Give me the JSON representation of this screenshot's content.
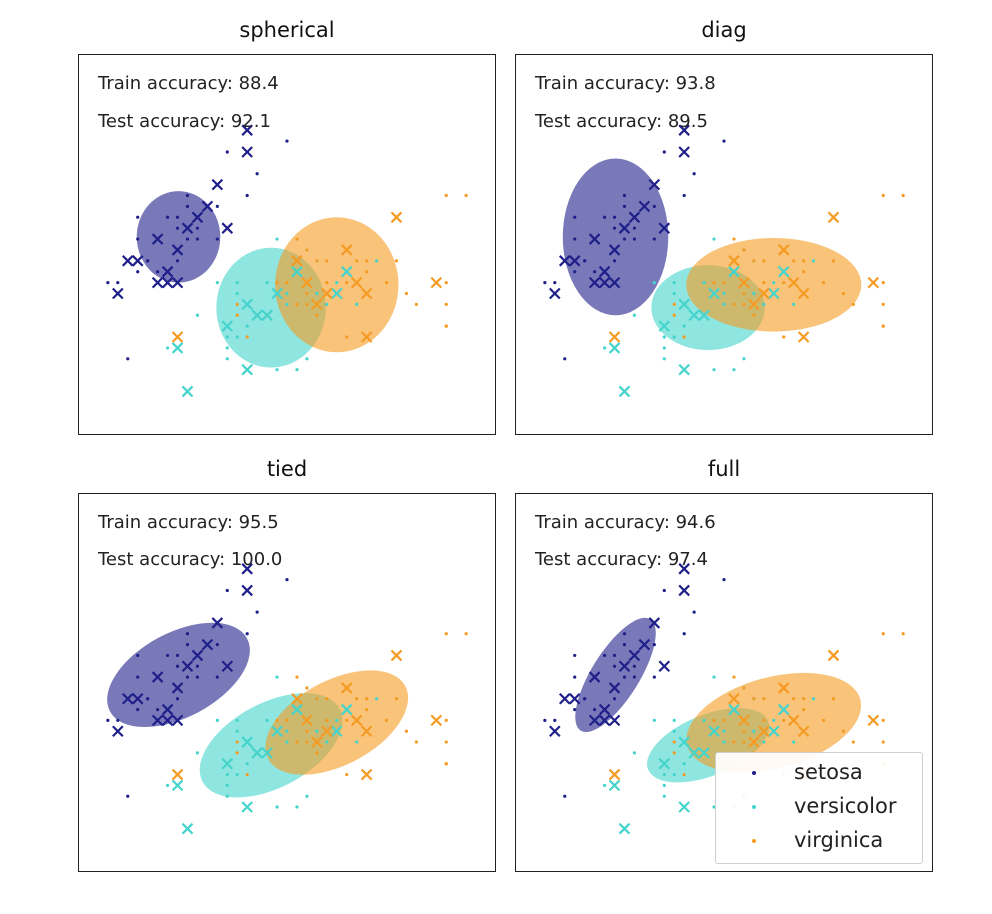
{
  "figure": {
    "colors": {
      "setosa": "#1f1f8a",
      "versicolor": "#44d4cc",
      "virginica": "#f59b22"
    }
  },
  "legend": {
    "placement": "bottom-right of last panel",
    "entries": [
      {
        "label": "setosa",
        "color": "#1f1f8a"
      },
      {
        "label": "versicolor",
        "color": "#44d4cc"
      },
      {
        "label": "virginica",
        "color": "#f59b22"
      }
    ]
  },
  "chart_data": [
    {
      "type": "scatter",
      "title": "spherical",
      "train_label": "Train accuracy: 88.4",
      "test_label": "Test accuracy: 92.1",
      "train_accuracy": 88.4,
      "test_accuracy": 92.1,
      "ellipses": [
        {
          "class": "setosa",
          "cx": 5.01,
          "cy": 3.42,
          "rx": 0.42,
          "ry": 0.42,
          "angle": 0
        },
        {
          "class": "versicolor",
          "cx": 5.94,
          "cy": 2.77,
          "rx": 0.55,
          "ry": 0.55,
          "angle": 0
        },
        {
          "class": "virginica",
          "cx": 6.6,
          "cy": 2.98,
          "rx": 0.62,
          "ry": 0.62,
          "angle": 0
        }
      ]
    },
    {
      "type": "scatter",
      "title": "diag",
      "train_label": "Train accuracy: 93.8",
      "test_label": "Test accuracy: 89.5",
      "train_accuracy": 93.8,
      "test_accuracy": 89.5,
      "ellipses": [
        {
          "class": "setosa",
          "cx": 5.01,
          "cy": 3.42,
          "rx": 0.53,
          "ry": 0.72,
          "angle": 0
        },
        {
          "class": "versicolor",
          "cx": 5.94,
          "cy": 2.77,
          "rx": 0.57,
          "ry": 0.39,
          "angle": 0
        },
        {
          "class": "virginica",
          "cx": 6.6,
          "cy": 2.98,
          "rx": 0.88,
          "ry": 0.43,
          "angle": 0
        }
      ]
    },
    {
      "type": "scatter",
      "title": "tied",
      "train_label": "Train accuracy: 95.5",
      "test_label": "Test accuracy: 100.0",
      "train_accuracy": 95.5,
      "test_accuracy": 100.0,
      "ellipses": [
        {
          "class": "setosa",
          "cx": 5.01,
          "cy": 3.42,
          "rx": 0.78,
          "ry": 0.39,
          "angle": 28
        },
        {
          "class": "versicolor",
          "cx": 5.94,
          "cy": 2.77,
          "rx": 0.78,
          "ry": 0.39,
          "angle": 28
        },
        {
          "class": "virginica",
          "cx": 6.6,
          "cy": 2.98,
          "rx": 0.78,
          "ry": 0.39,
          "angle": 28
        }
      ]
    },
    {
      "type": "scatter",
      "title": "full",
      "train_label": "Train accuracy: 94.6",
      "test_label": "Test accuracy: 97.4",
      "train_accuracy": 94.6,
      "test_accuracy": 97.4,
      "ellipses": [
        {
          "class": "setosa",
          "cx": 5.01,
          "cy": 3.42,
          "rx": 0.66,
          "ry": 0.22,
          "angle": 58
        },
        {
          "class": "versicolor",
          "cx": 5.94,
          "cy": 2.77,
          "rx": 0.65,
          "ry": 0.28,
          "angle": 22
        },
        {
          "class": "virginica",
          "cx": 6.6,
          "cy": 2.98,
          "rx": 0.9,
          "ry": 0.42,
          "angle": 15
        }
      ]
    }
  ],
  "points": {
    "train": [
      {
        "class": "setosa",
        "x": 4.9,
        "y": 3.0
      },
      {
        "class": "setosa",
        "x": 4.7,
        "y": 3.2
      },
      {
        "class": "setosa",
        "x": 4.6,
        "y": 3.1
      },
      {
        "class": "setosa",
        "x": 5.0,
        "y": 3.6
      },
      {
        "class": "setosa",
        "x": 5.4,
        "y": 3.9
      },
      {
        "class": "setosa",
        "x": 4.6,
        "y": 3.4
      },
      {
        "class": "setosa",
        "x": 4.4,
        "y": 2.9
      },
      {
        "class": "setosa",
        "x": 4.9,
        "y": 3.1
      },
      {
        "class": "setosa",
        "x": 5.4,
        "y": 3.7
      },
      {
        "class": "setosa",
        "x": 4.8,
        "y": 3.4
      },
      {
        "class": "setosa",
        "x": 4.3,
        "y": 3.0
      },
      {
        "class": "setosa",
        "x": 5.8,
        "y": 4.0
      },
      {
        "class": "setosa",
        "x": 5.7,
        "y": 4.4
      },
      {
        "class": "setosa",
        "x": 5.4,
        "y": 3.9
      },
      {
        "class": "setosa",
        "x": 5.1,
        "y": 3.5
      },
      {
        "class": "setosa",
        "x": 5.7,
        "y": 3.8
      },
      {
        "class": "setosa",
        "x": 5.1,
        "y": 3.8
      },
      {
        "class": "setosa",
        "x": 5.4,
        "y": 3.4
      },
      {
        "class": "setosa",
        "x": 5.1,
        "y": 3.7
      },
      {
        "class": "setosa",
        "x": 4.6,
        "y": 3.6
      },
      {
        "class": "setosa",
        "x": 5.0,
        "y": 3.0
      },
      {
        "class": "setosa",
        "x": 5.2,
        "y": 3.5
      },
      {
        "class": "setosa",
        "x": 5.2,
        "y": 3.4
      },
      {
        "class": "setosa",
        "x": 4.7,
        "y": 3.2
      },
      {
        "class": "setosa",
        "x": 4.8,
        "y": 3.1
      },
      {
        "class": "setosa",
        "x": 5.5,
        "y": 4.2
      },
      {
        "class": "setosa",
        "x": 4.9,
        "y": 3.6
      },
      {
        "class": "setosa",
        "x": 5.0,
        "y": 3.2
      },
      {
        "class": "setosa",
        "x": 4.4,
        "y": 3.0
      },
      {
        "class": "setosa",
        "x": 5.1,
        "y": 3.4
      },
      {
        "class": "setosa",
        "x": 4.5,
        "y": 2.3
      },
      {
        "class": "setosa",
        "x": 5.0,
        "y": 3.5
      },
      {
        "class": "setosa",
        "x": 5.3,
        "y": 3.7
      },
      {
        "class": "setosa",
        "x": 6.1,
        "y": 4.3
      },
      {
        "class": "versicolor",
        "x": 7.0,
        "y": 3.2
      },
      {
        "class": "versicolor",
        "x": 6.4,
        "y": 3.2
      },
      {
        "class": "versicolor",
        "x": 5.5,
        "y": 2.3
      },
      {
        "class": "versicolor",
        "x": 6.5,
        "y": 2.8
      },
      {
        "class": "versicolor",
        "x": 5.7,
        "y": 2.8
      },
      {
        "class": "versicolor",
        "x": 6.3,
        "y": 3.3
      },
      {
        "class": "versicolor",
        "x": 4.9,
        "y": 2.4
      },
      {
        "class": "versicolor",
        "x": 6.6,
        "y": 2.9
      },
      {
        "class": "versicolor",
        "x": 5.2,
        "y": 2.7
      },
      {
        "class": "versicolor",
        "x": 5.9,
        "y": 3.0
      },
      {
        "class": "versicolor",
        "x": 6.0,
        "y": 2.2
      },
      {
        "class": "versicolor",
        "x": 6.1,
        "y": 2.9
      },
      {
        "class": "versicolor",
        "x": 5.6,
        "y": 2.9
      },
      {
        "class": "versicolor",
        "x": 6.7,
        "y": 3.1
      },
      {
        "class": "versicolor",
        "x": 5.8,
        "y": 2.7
      },
      {
        "class": "versicolor",
        "x": 6.2,
        "y": 2.2
      },
      {
        "class": "versicolor",
        "x": 5.6,
        "y": 2.5
      },
      {
        "class": "versicolor",
        "x": 6.1,
        "y": 2.8
      },
      {
        "class": "versicolor",
        "x": 6.4,
        "y": 2.9
      },
      {
        "class": "versicolor",
        "x": 6.6,
        "y": 3.0
      },
      {
        "class": "versicolor",
        "x": 6.8,
        "y": 2.8
      },
      {
        "class": "versicolor",
        "x": 6.0,
        "y": 2.9
      },
      {
        "class": "versicolor",
        "x": 5.7,
        "y": 2.6
      },
      {
        "class": "versicolor",
        "x": 5.5,
        "y": 2.4
      },
      {
        "class": "versicolor",
        "x": 5.8,
        "y": 2.7
      },
      {
        "class": "versicolor",
        "x": 5.4,
        "y": 3.0
      },
      {
        "class": "versicolor",
        "x": 6.0,
        "y": 3.4
      },
      {
        "class": "versicolor",
        "x": 6.3,
        "y": 2.3
      },
      {
        "class": "versicolor",
        "x": 5.6,
        "y": 3.0
      },
      {
        "class": "versicolor",
        "x": 5.5,
        "y": 2.5
      },
      {
        "class": "virginica",
        "x": 6.3,
        "y": 3.3
      },
      {
        "class": "virginica",
        "x": 5.8,
        "y": 2.7
      },
      {
        "class": "virginica",
        "x": 7.1,
        "y": 3.0
      },
      {
        "class": "virginica",
        "x": 6.3,
        "y": 2.9
      },
      {
        "class": "virginica",
        "x": 6.5,
        "y": 3.0
      },
      {
        "class": "virginica",
        "x": 7.6,
        "y": 3.0
      },
      {
        "class": "virginica",
        "x": 7.3,
        "y": 2.9
      },
      {
        "class": "virginica",
        "x": 6.7,
        "y": 2.5
      },
      {
        "class": "virginica",
        "x": 7.2,
        "y": 3.6
      },
      {
        "class": "virginica",
        "x": 6.5,
        "y": 3.2
      },
      {
        "class": "virginica",
        "x": 6.4,
        "y": 2.7
      },
      {
        "class": "virginica",
        "x": 6.8,
        "y": 3.0
      },
      {
        "class": "virginica",
        "x": 5.7,
        "y": 2.5
      },
      {
        "class": "virginica",
        "x": 6.4,
        "y": 3.2
      },
      {
        "class": "virginica",
        "x": 7.7,
        "y": 3.8
      },
      {
        "class": "virginica",
        "x": 7.7,
        "y": 2.6
      },
      {
        "class": "virginica",
        "x": 6.9,
        "y": 3.2
      },
      {
        "class": "virginica",
        "x": 5.6,
        "y": 2.8
      },
      {
        "class": "virginica",
        "x": 7.7,
        "y": 2.8
      },
      {
        "class": "virginica",
        "x": 6.7,
        "y": 3.3
      },
      {
        "class": "virginica",
        "x": 7.2,
        "y": 3.2
      },
      {
        "class": "virginica",
        "x": 6.2,
        "y": 2.8
      },
      {
        "class": "virginica",
        "x": 6.1,
        "y": 3.0
      },
      {
        "class": "virginica",
        "x": 6.4,
        "y": 2.8
      },
      {
        "class": "virginica",
        "x": 7.4,
        "y": 2.8
      },
      {
        "class": "virginica",
        "x": 7.9,
        "y": 3.8
      },
      {
        "class": "virginica",
        "x": 6.3,
        "y": 2.8
      },
      {
        "class": "virginica",
        "x": 7.7,
        "y": 3.0
      },
      {
        "class": "virginica",
        "x": 6.0,
        "y": 3.0
      },
      {
        "class": "virginica",
        "x": 6.9,
        "y": 3.1
      },
      {
        "class": "virginica",
        "x": 5.8,
        "y": 2.7
      },
      {
        "class": "virginica",
        "x": 6.8,
        "y": 3.2
      },
      {
        "class": "virginica",
        "x": 6.7,
        "y": 3.0
      },
      {
        "class": "virginica",
        "x": 7.7,
        "y": 2.6
      },
      {
        "class": "virginica",
        "x": 5.6,
        "y": 2.7
      },
      {
        "class": "virginica",
        "x": 6.2,
        "y": 3.4
      }
    ],
    "test": [
      {
        "class": "setosa",
        "x": 4.4,
        "y": 2.9
      },
      {
        "class": "setosa",
        "x": 4.8,
        "y": 3.0
      },
      {
        "class": "setosa",
        "x": 4.9,
        "y": 3.1
      },
      {
        "class": "setosa",
        "x": 5.0,
        "y": 3.3
      },
      {
        "class": "setosa",
        "x": 4.8,
        "y": 3.4
      },
      {
        "class": "setosa",
        "x": 5.1,
        "y": 3.5
      },
      {
        "class": "setosa",
        "x": 5.3,
        "y": 3.7
      },
      {
        "class": "setosa",
        "x": 5.4,
        "y": 3.9
      },
      {
        "class": "setosa",
        "x": 5.7,
        "y": 4.4
      },
      {
        "class": "setosa",
        "x": 5.7,
        "y": 4.2
      },
      {
        "class": "setosa",
        "x": 4.6,
        "y": 3.2
      },
      {
        "class": "setosa",
        "x": 5.0,
        "y": 3.0
      },
      {
        "class": "setosa",
        "x": 4.5,
        "y": 3.2
      },
      {
        "class": "setosa",
        "x": 5.2,
        "y": 3.6
      },
      {
        "class": "setosa",
        "x": 5.5,
        "y": 3.5
      },
      {
        "class": "setosa",
        "x": 4.9,
        "y": 3.0
      },
      {
        "class": "versicolor",
        "x": 5.0,
        "y": 2.4
      },
      {
        "class": "versicolor",
        "x": 5.1,
        "y": 2.0
      },
      {
        "class": "versicolor",
        "x": 5.5,
        "y": 2.6
      },
      {
        "class": "versicolor",
        "x": 5.8,
        "y": 2.7
      },
      {
        "class": "versicolor",
        "x": 6.0,
        "y": 2.9
      },
      {
        "class": "versicolor",
        "x": 5.7,
        "y": 2.2
      },
      {
        "class": "versicolor",
        "x": 6.7,
        "y": 3.1
      },
      {
        "class": "versicolor",
        "x": 6.2,
        "y": 3.1
      },
      {
        "class": "versicolor",
        "x": 5.9,
        "y": 2.7
      },
      {
        "class": "versicolor",
        "x": 5.7,
        "y": 2.8
      },
      {
        "class": "versicolor",
        "x": 6.6,
        "y": 2.9
      },
      {
        "class": "virginica",
        "x": 7.6,
        "y": 3.0
      },
      {
        "class": "virginica",
        "x": 7.2,
        "y": 3.6
      },
      {
        "class": "virginica",
        "x": 5.0,
        "y": 2.5
      },
      {
        "class": "virginica",
        "x": 6.9,
        "y": 2.5
      },
      {
        "class": "virginica",
        "x": 6.8,
        "y": 3.0
      },
      {
        "class": "virginica",
        "x": 6.4,
        "y": 2.8
      },
      {
        "class": "virginica",
        "x": 6.2,
        "y": 3.2
      },
      {
        "class": "virginica",
        "x": 6.5,
        "y": 2.9
      },
      {
        "class": "virginica",
        "x": 6.7,
        "y": 3.3
      },
      {
        "class": "virginica",
        "x": 6.3,
        "y": 3.0
      },
      {
        "class": "virginica",
        "x": 6.9,
        "y": 2.9
      }
    ]
  }
}
